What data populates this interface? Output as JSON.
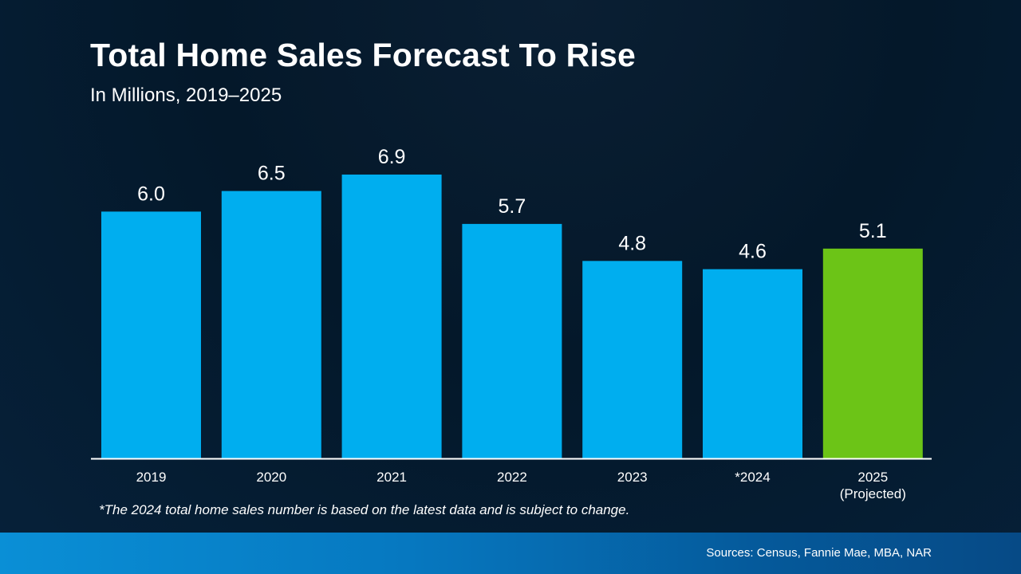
{
  "header": {
    "title": "Total Home Sales Forecast To Rise",
    "subtitle": "In Millions, 2019–2025"
  },
  "chart_data": {
    "type": "bar",
    "title": "Total Home Sales Forecast To Rise",
    "subtitle": "In Millions, 2019–2025",
    "xlabel": "",
    "ylabel": "",
    "ylim": [
      0,
      7
    ],
    "grid": false,
    "categories": [
      [
        "2019"
      ],
      [
        "2020"
      ],
      [
        "2021"
      ],
      [
        "2022"
      ],
      [
        "2023"
      ],
      [
        "*2024"
      ],
      [
        "2025",
        "(Projected)"
      ]
    ],
    "values": [
      6.0,
      6.5,
      6.9,
      5.7,
      4.8,
      4.6,
      5.1
    ],
    "value_labels": [
      "6.0",
      "6.5",
      "6.9",
      "5.7",
      "4.8",
      "4.6",
      "5.1"
    ],
    "colors": [
      "#00aeef",
      "#00aeef",
      "#00aeef",
      "#00aeef",
      "#00aeef",
      "#00aeef",
      "#6cc417"
    ],
    "axis_color": "#ffffff"
  },
  "footnote": "*The 2024 total home sales number is based on the latest data and is subject to change.",
  "footer": {
    "sources": "Sources: Census, Fannie Mae, MBA, NAR"
  }
}
